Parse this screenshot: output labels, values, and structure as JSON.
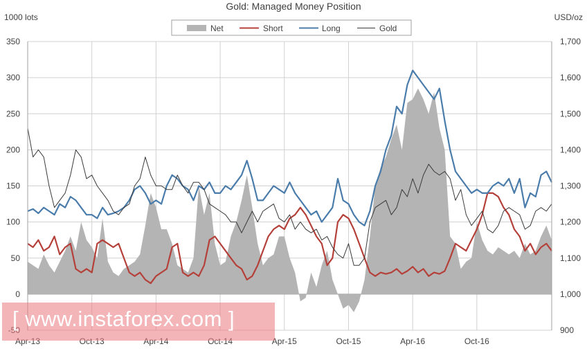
{
  "chart_data": {
    "type": "line",
    "title": "Gold:  Managed Money Position",
    "left_axis_label": "1000 lots",
    "right_axis_label": "USD/oz",
    "left_ylim": [
      -50,
      350
    ],
    "right_ylim": [
      900,
      1700
    ],
    "left_ticks": [
      "-50",
      "0",
      "50",
      "100",
      "150",
      "200",
      "250",
      "300",
      "350"
    ],
    "left_tick_values": [
      -50,
      0,
      50,
      100,
      150,
      200,
      250,
      300,
      350
    ],
    "right_ticks": [
      "900",
      "1,000",
      "1,100",
      "1,200",
      "1,300",
      "1,400",
      "1,500",
      "1,600",
      "1,700"
    ],
    "right_tick_values": [
      900,
      1000,
      1100,
      1200,
      1300,
      1400,
      1500,
      1600,
      1700
    ],
    "x_labels": [
      "Apr-13",
      "Oct-13",
      "Apr-14",
      "Oct-14",
      "Apr-15",
      "Oct-15",
      "Apr-16",
      "Oct-16"
    ],
    "x_label_months": [
      0,
      6,
      12,
      18,
      24,
      30,
      36,
      42
    ],
    "x_range_months": [
      0,
      49
    ],
    "legend": [
      "Net",
      "Short",
      "Long",
      "Gold"
    ],
    "colors": {
      "net": "#b4b4b4",
      "short": "#b5403a",
      "long": "#4a7cab",
      "gold": "#3a3a3a",
      "grid": "#d0d0d0"
    },
    "series": [
      {
        "name": "Net",
        "axis": "left",
        "type": "area",
        "x": [
          0,
          0.5,
          1,
          1.5,
          2,
          2.5,
          3,
          3.5,
          4,
          4.5,
          5,
          5.5,
          6,
          6.5,
          7,
          7.5,
          8,
          8.5,
          9,
          9.5,
          10,
          10.5,
          11,
          11.5,
          12,
          12.5,
          13,
          13.5,
          14,
          14.5,
          15,
          15.5,
          16,
          16.5,
          17,
          17.5,
          18,
          18.5,
          19,
          19.5,
          20,
          20.5,
          21,
          21.5,
          22,
          22.5,
          23,
          23.5,
          24,
          24.5,
          25,
          25.5,
          26,
          26.5,
          27,
          27.5,
          28,
          28.5,
          29,
          29.5,
          30,
          30.5,
          31,
          31.5,
          32,
          32.5,
          33,
          33.5,
          34,
          34.5,
          35,
          35.5,
          36,
          36.5,
          37,
          37.5,
          38,
          38.5,
          39,
          39.5,
          40,
          40.5,
          41,
          41.5,
          42,
          42.5,
          43,
          43.5,
          44,
          44.5,
          45,
          45.5,
          46,
          46.5,
          47,
          47.5,
          48,
          48.5,
          49
        ],
        "values": [
          45,
          40,
          35,
          55,
          40,
          30,
          45,
          60,
          80,
          60,
          100,
          75,
          65,
          50,
          105,
          45,
          30,
          25,
          35,
          40,
          45,
          55,
          95,
          140,
          120,
          90,
          90,
          70,
          40,
          35,
          30,
          50,
          150,
          110,
          140,
          70,
          40,
          45,
          80,
          100,
          130,
          165,
          120,
          70,
          40,
          50,
          55,
          80,
          80,
          50,
          30,
          -10,
          -5,
          30,
          10,
          40,
          60,
          20,
          0,
          -20,
          -15,
          -25,
          -10,
          20,
          80,
          150,
          175,
          190,
          215,
          235,
          200,
          265,
          270,
          285,
          270,
          250,
          280,
          230,
          200,
          80,
          70,
          35,
          45,
          50,
          100,
          75,
          60,
          55,
          65,
          60,
          55,
          60,
          50,
          70,
          55,
          60,
          80,
          95,
          75
        ]
      },
      {
        "name": "Short",
        "axis": "left",
        "x": [
          0,
          0.5,
          1,
          1.5,
          2,
          2.5,
          3,
          3.5,
          4,
          4.5,
          5,
          5.5,
          6,
          6.5,
          7,
          7.5,
          8,
          8.5,
          9,
          9.5,
          10,
          10.5,
          11,
          11.5,
          12,
          12.5,
          13,
          13.5,
          14,
          14.5,
          15,
          15.5,
          16,
          16.5,
          17,
          17.5,
          18,
          18.5,
          19,
          19.5,
          20,
          20.5,
          21,
          21.5,
          22,
          22.5,
          23,
          23.5,
          24,
          24.5,
          25,
          25.5,
          26,
          26.5,
          27,
          27.5,
          28,
          28.5,
          29,
          29.5,
          30,
          30.5,
          31,
          31.5,
          32,
          32.5,
          33,
          33.5,
          34,
          34.5,
          35,
          35.5,
          36,
          36.5,
          37,
          37.5,
          38,
          38.5,
          39,
          39.5,
          40,
          40.5,
          41,
          41.5,
          42,
          42.5,
          43,
          43.5,
          44,
          44.5,
          45,
          45.5,
          46,
          46.5,
          47,
          47.5,
          48,
          48.5,
          49
        ],
        "values": [
          70,
          65,
          75,
          60,
          65,
          80,
          55,
          65,
          70,
          35,
          30,
          35,
          30,
          70,
          75,
          70,
          65,
          70,
          50,
          30,
          25,
          30,
          20,
          15,
          25,
          30,
          35,
          65,
          70,
          30,
          25,
          30,
          25,
          40,
          75,
          80,
          70,
          60,
          50,
          40,
          35,
          20,
          25,
          40,
          60,
          80,
          90,
          95,
          90,
          105,
          110,
          120,
          110,
          95,
          80,
          70,
          40,
          50,
          100,
          110,
          105,
          90,
          70,
          50,
          30,
          25,
          30,
          28,
          30,
          35,
          28,
          32,
          38,
          30,
          35,
          25,
          30,
          28,
          32,
          50,
          70,
          65,
          60,
          75,
          90,
          110,
          140,
          140,
          135,
          120,
          110,
          90,
          80,
          60,
          70,
          55,
          65,
          70,
          60
        ]
      },
      {
        "name": "Long",
        "axis": "left",
        "x": [
          0,
          0.5,
          1,
          1.5,
          2,
          2.5,
          3,
          3.5,
          4,
          4.5,
          5,
          5.5,
          6,
          6.5,
          7,
          7.5,
          8,
          8.5,
          9,
          9.5,
          10,
          10.5,
          11,
          11.5,
          12,
          12.5,
          13,
          13.5,
          14,
          14.5,
          15,
          15.5,
          16,
          16.5,
          17,
          17.5,
          18,
          18.5,
          19,
          19.5,
          20,
          20.5,
          21,
          21.5,
          22,
          22.5,
          23,
          23.5,
          24,
          24.5,
          25,
          25.5,
          26,
          26.5,
          27,
          27.5,
          28,
          28.5,
          29,
          29.5,
          30,
          30.5,
          31,
          31.5,
          32,
          32.5,
          33,
          33.5,
          34,
          34.5,
          35,
          35.5,
          36,
          36.5,
          37,
          37.5,
          38,
          38.5,
          39,
          39.5,
          40,
          40.5,
          41,
          41.5,
          42,
          42.5,
          43,
          43.5,
          44,
          44.5,
          45,
          45.5,
          46,
          46.5,
          47,
          47.5,
          48,
          48.5,
          49
        ],
        "values": [
          115,
          118,
          112,
          120,
          115,
          110,
          125,
          120,
          135,
          130,
          120,
          110,
          110,
          105,
          120,
          110,
          112,
          115,
          120,
          130,
          145,
          150,
          140,
          125,
          130,
          125,
          150,
          165,
          160,
          150,
          145,
          130,
          150,
          145,
          155,
          140,
          140,
          150,
          145,
          155,
          165,
          185,
          160,
          130,
          130,
          140,
          150,
          145,
          140,
          155,
          140,
          130,
          120,
          110,
          115,
          100,
          110,
          120,
          160,
          130,
          125,
          110,
          100,
          95,
          115,
          150,
          170,
          200,
          220,
          260,
          250,
          290,
          310,
          300,
          290,
          280,
          270,
          285,
          240,
          200,
          170,
          160,
          150,
          140,
          145,
          140,
          140,
          150,
          155,
          150,
          160,
          140,
          160,
          120,
          140,
          135,
          165,
          170,
          155
        ]
      },
      {
        "name": "Gold",
        "axis": "right",
        "x": [
          0,
          0.5,
          1,
          1.5,
          2,
          2.5,
          3,
          3.5,
          4,
          4.5,
          5,
          5.5,
          6,
          6.5,
          7,
          7.5,
          8,
          8.5,
          9,
          9.5,
          10,
          10.5,
          11,
          11.5,
          12,
          12.5,
          13,
          13.5,
          14,
          14.5,
          15,
          15.5,
          16,
          16.5,
          17,
          17.5,
          18,
          18.5,
          19,
          19.5,
          20,
          20.5,
          21,
          21.5,
          22,
          22.5,
          23,
          23.5,
          24,
          24.5,
          25,
          25.5,
          26,
          26.5,
          27,
          27.5,
          28,
          28.5,
          29,
          29.5,
          30,
          30.5,
          31,
          31.5,
          32,
          32.5,
          33,
          33.5,
          34,
          34.5,
          35,
          35.5,
          36,
          36.5,
          37,
          37.5,
          38,
          38.5,
          39,
          39.5,
          40,
          40.5,
          41,
          41.5,
          42,
          42.5,
          43,
          43.5,
          44,
          44.5,
          45,
          45.5,
          46,
          46.5,
          47,
          47.5,
          48,
          48.5,
          49
        ],
        "values": [
          1460,
          1380,
          1400,
          1380,
          1300,
          1240,
          1260,
          1280,
          1330,
          1400,
          1380,
          1320,
          1330,
          1300,
          1280,
          1260,
          1230,
          1220,
          1240,
          1250,
          1300,
          1320,
          1380,
          1330,
          1300,
          1300,
          1290,
          1290,
          1330,
          1300,
          1280,
          1310,
          1310,
          1290,
          1250,
          1240,
          1230,
          1220,
          1200,
          1200,
          1170,
          1200,
          1230,
          1200,
          1230,
          1240,
          1250,
          1210,
          1200,
          1220,
          1180,
          1200,
          1180,
          1170,
          1180,
          1150,
          1160,
          1130,
          1110,
          1100,
          1140,
          1080,
          1080,
          1100,
          1200,
          1240,
          1250,
          1260,
          1220,
          1240,
          1290,
          1270,
          1320,
          1280,
          1330,
          1360,
          1340,
          1330,
          1340,
          1320,
          1260,
          1290,
          1220,
          1190,
          1210,
          1230,
          1180,
          1170,
          1190,
          1230,
          1240,
          1230,
          1220,
          1180,
          1190,
          1230,
          1240,
          1230,
          1250
        ]
      }
    ]
  },
  "watermark": {
    "bracket_open": "[",
    "text": "www.instaforex.com",
    "bracket_close": "]"
  }
}
